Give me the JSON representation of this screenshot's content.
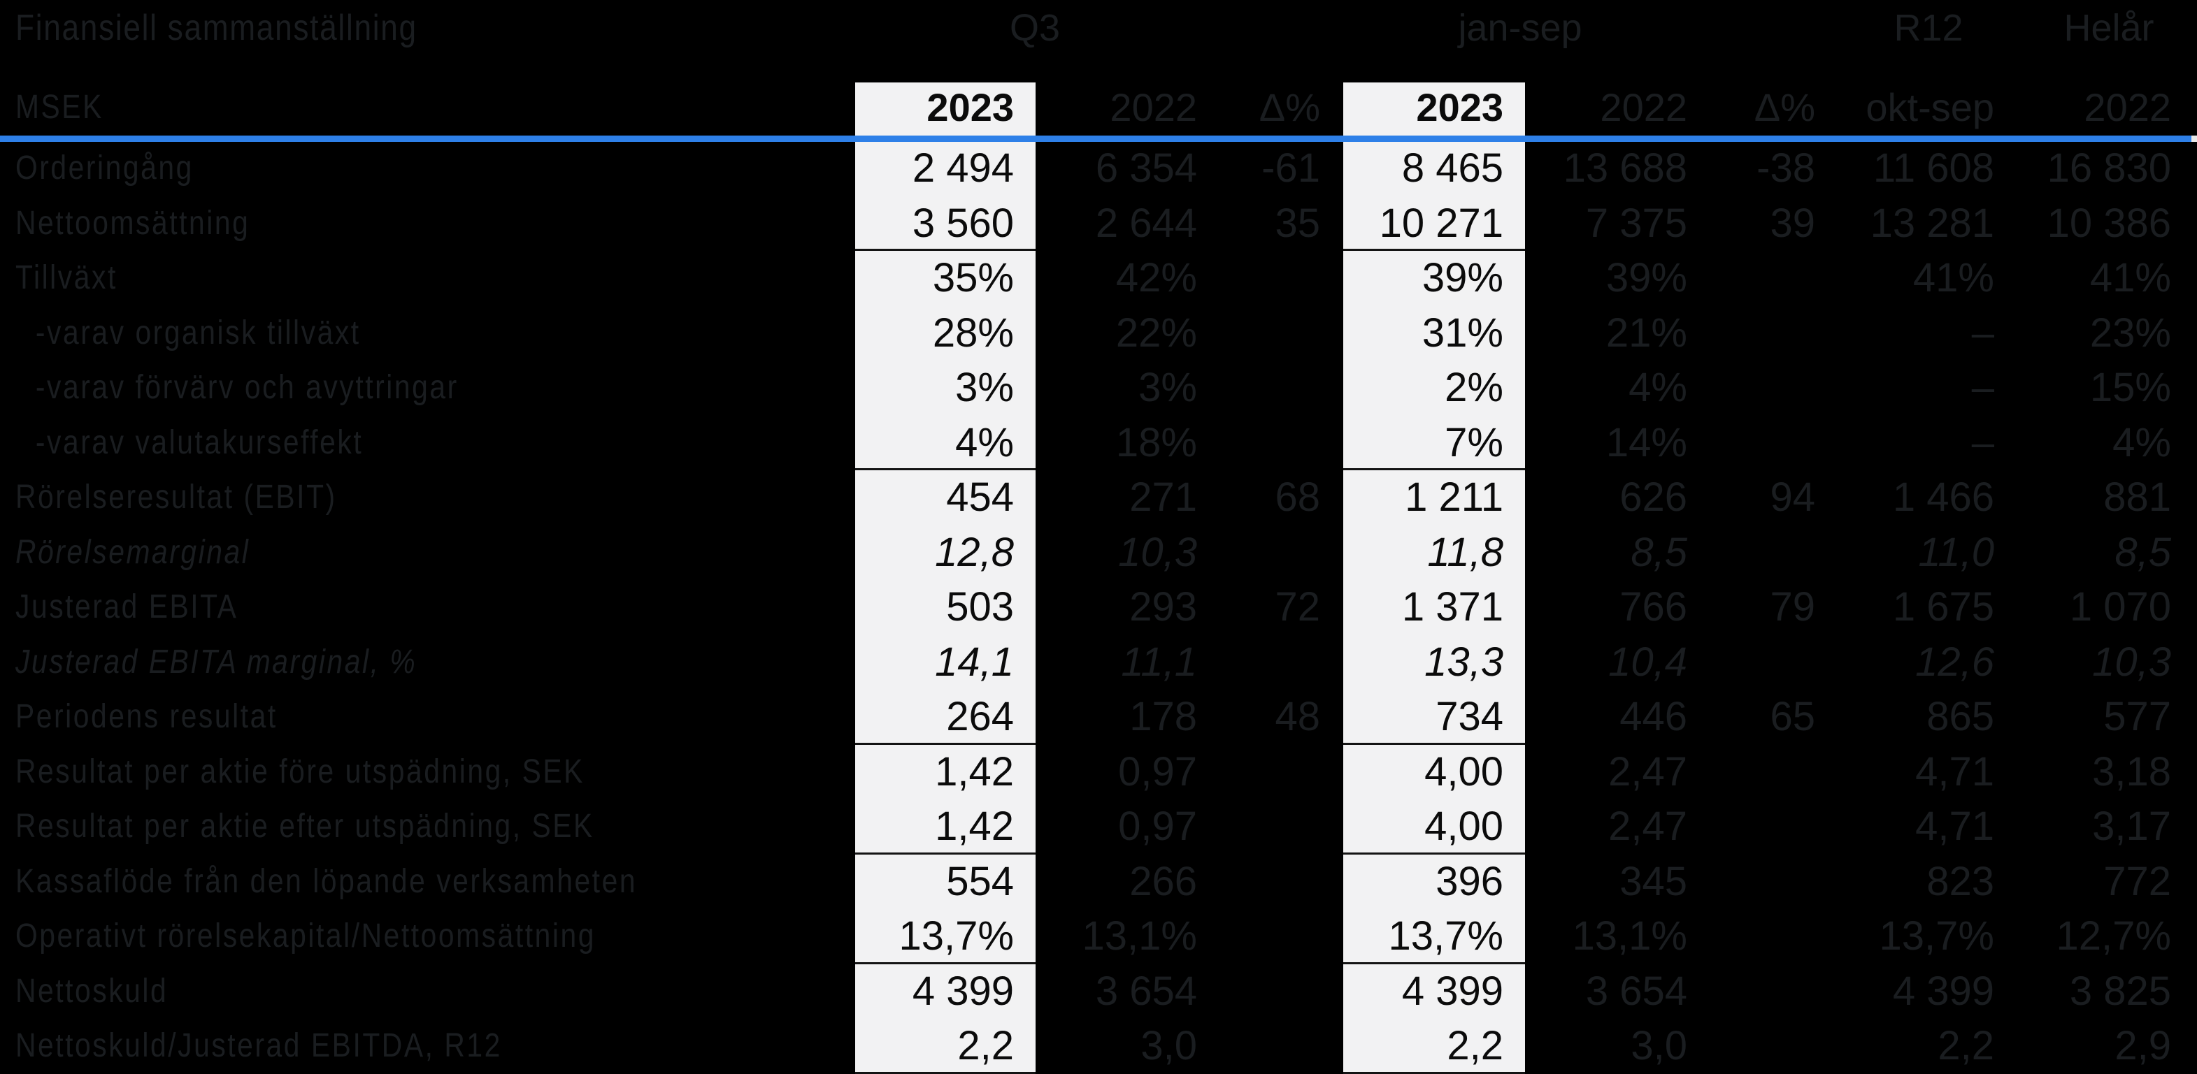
{
  "title": "Finansiell sammanställning",
  "unit_label": "MSEK",
  "colors": {
    "background": "#000000",
    "accent_blue": "#2e80e8",
    "highlight_column": "#f2f2f3",
    "faint_text": "#1a1d20"
  },
  "column_groups": [
    {
      "label": "Q3"
    },
    {
      "label": "jan-sep"
    },
    {
      "label": "R12"
    },
    {
      "label": "Helår"
    }
  ],
  "columns": [
    "2023",
    "2022",
    "Δ%",
    "2023",
    "2022",
    "Δ%",
    "okt-sep",
    "2022"
  ],
  "rows": [
    {
      "label": "Orderingång",
      "italic": false,
      "indent": false,
      "sep_after": false,
      "cells": [
        "2 494",
        "6 354",
        "-61",
        "8 465",
        "13 688",
        "-38",
        "11 608",
        "16 830"
      ]
    },
    {
      "label": "Nettoomsättning",
      "italic": false,
      "indent": false,
      "sep_after": true,
      "cells": [
        "3 560",
        "2 644",
        "35",
        "10 271",
        "7 375",
        "39",
        "13 281",
        "10 386"
      ]
    },
    {
      "label": "Tillväxt",
      "italic": false,
      "indent": false,
      "sep_after": false,
      "cells": [
        "35%",
        "42%",
        "",
        "39%",
        "39%",
        "",
        "41%",
        "41%"
      ]
    },
    {
      "label": "-varav organisk tillväxt",
      "italic": false,
      "indent": true,
      "sep_after": false,
      "cells": [
        "28%",
        "22%",
        "",
        "31%",
        "21%",
        "",
        "–",
        "23%"
      ]
    },
    {
      "label": "-varav förvärv och avyttringar",
      "italic": false,
      "indent": true,
      "sep_after": false,
      "cells": [
        "3%",
        "3%",
        "",
        "2%",
        "4%",
        "",
        "–",
        "15%"
      ]
    },
    {
      "label": "-varav valutakurseffekt",
      "italic": false,
      "indent": true,
      "sep_after": true,
      "cells": [
        "4%",
        "18%",
        "",
        "7%",
        "14%",
        "",
        "–",
        "4%"
      ]
    },
    {
      "label": "Rörelseresultat (EBIT)",
      "italic": false,
      "indent": false,
      "sep_after": false,
      "cells": [
        "454",
        "271",
        "68",
        "1 211",
        "626",
        "94",
        "1 466",
        "881"
      ]
    },
    {
      "label": "Rörelsemarginal",
      "italic": true,
      "indent": false,
      "sep_after": false,
      "cells": [
        "12,8",
        "10,3",
        "",
        "11,8",
        "8,5",
        "",
        "11,0",
        "8,5"
      ]
    },
    {
      "label": "Justerad EBITA",
      "italic": false,
      "indent": false,
      "sep_after": false,
      "cells": [
        "503",
        "293",
        "72",
        "1 371",
        "766",
        "79",
        "1 675",
        "1 070"
      ]
    },
    {
      "label": "Justerad EBITA marginal, %",
      "italic": true,
      "indent": false,
      "sep_after": false,
      "cells": [
        "14,1",
        "11,1",
        "",
        "13,3",
        "10,4",
        "",
        "12,6",
        "10,3"
      ]
    },
    {
      "label": "Periodens resultat",
      "italic": false,
      "indent": false,
      "sep_after": true,
      "cells": [
        "264",
        "178",
        "48",
        "734",
        "446",
        "65",
        "865",
        "577"
      ]
    },
    {
      "label": "Resultat per aktie före utspädning, SEK",
      "italic": false,
      "indent": false,
      "sep_after": false,
      "cells": [
        "1,42",
        "0,97",
        "",
        "4,00",
        "2,47",
        "",
        "4,71",
        "3,18"
      ]
    },
    {
      "label": "Resultat per aktie efter utspädning, SEK",
      "italic": false,
      "indent": false,
      "sep_after": true,
      "cells": [
        "1,42",
        "0,97",
        "",
        "4,00",
        "2,47",
        "",
        "4,71",
        "3,17"
      ]
    },
    {
      "label": "Kassaflöde från den löpande verksamheten",
      "italic": false,
      "indent": false,
      "sep_after": false,
      "cells": [
        "554",
        "266",
        "",
        "396",
        "345",
        "",
        "823",
        "772"
      ]
    },
    {
      "label": "Operativt rörelsekapital/Nettoomsättning",
      "italic": false,
      "indent": false,
      "sep_after": true,
      "cells": [
        "13,7%",
        "13,1%",
        "",
        "13,7%",
        "13,1%",
        "",
        "13,7%",
        "12,7%"
      ]
    },
    {
      "label": "Nettoskuld",
      "italic": false,
      "indent": false,
      "sep_after": false,
      "cells": [
        "4 399",
        "3 654",
        "",
        "4 399",
        "3 654",
        "",
        "4 399",
        "3 825"
      ]
    },
    {
      "label": "Nettoskuld/Justerad EBITDA, R12",
      "italic": false,
      "indent": false,
      "sep_after": true,
      "cells": [
        "2,2",
        "3,0",
        "",
        "2,2",
        "3,0",
        "",
        "2,2",
        "2,9"
      ]
    }
  ]
}
